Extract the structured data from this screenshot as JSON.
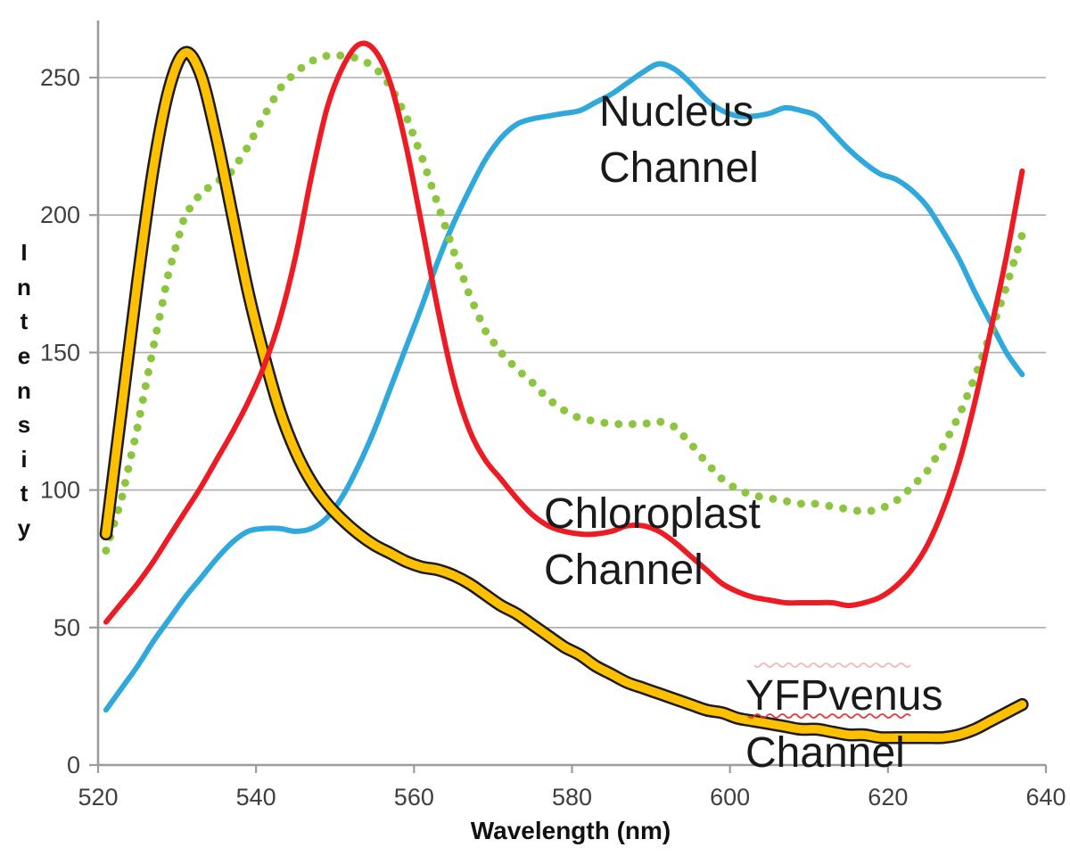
{
  "page": {
    "background": "#ffffff"
  },
  "chart_data": {
    "type": "line",
    "title": "",
    "xlabel": "Wavelength (nm)",
    "ylabel": "Intensity",
    "xlim": [
      520,
      640
    ],
    "ylim": [
      0,
      250
    ],
    "x_ticks": [
      "520",
      "540",
      "560",
      "580",
      "600",
      "620",
      "640"
    ],
    "y_ticks": [
      "0",
      "50",
      "100",
      "150",
      "200",
      "250"
    ],
    "grid": "horizontal-only",
    "legend_position": "none (series labeled by on-plot text annotations)",
    "colors": {
      "nucleus_line": "#2FA8DC",
      "green_dotted_line": "#8CC63F",
      "yfpvenus_line": "#FFC000",
      "yfpvenus_outline": "#1C1C1C",
      "chloroplast_line": "#ED1C24",
      "gridline": "#ABABAB",
      "axis": "#9B9B9B",
      "tick_text": "#3F3F3F",
      "annotation_text": "#1A1A1A",
      "spellcheck_underline": "#E03030"
    },
    "x": [
      521,
      523,
      525,
      527,
      529,
      531,
      533,
      535,
      537,
      539,
      541,
      543,
      545,
      547,
      549,
      551,
      553,
      555,
      557,
      559,
      561,
      563,
      565,
      567,
      569,
      571,
      573,
      575,
      577,
      579,
      581,
      583,
      585,
      587,
      589,
      591,
      593,
      595,
      597,
      599,
      601,
      603,
      605,
      607,
      609,
      611,
      613,
      615,
      617,
      619,
      621,
      623,
      625,
      627,
      629,
      631,
      633,
      635,
      637
    ],
    "series": [
      {
        "name": "Nucleus Channel",
        "style": "solid",
        "color": "#2FA8DC",
        "width": 6,
        "values": [
          20,
          28,
          36,
          45,
          53,
          61,
          68,
          75,
          81,
          85,
          86,
          86,
          85,
          86,
          90,
          98,
          109,
          122,
          137,
          152,
          167,
          183,
          197,
          209,
          220,
          228,
          233,
          235,
          236,
          237,
          238,
          241,
          244,
          248,
          252,
          255,
          253,
          248,
          242,
          238,
          236,
          236,
          237,
          239,
          238,
          236,
          230,
          224,
          219,
          215,
          213,
          209,
          203,
          194,
          184,
          172,
          161,
          150,
          142
        ]
      },
      {
        "name": "Green dotted series (unlabeled)",
        "style": "dotted",
        "color": "#8CC63F",
        "dot_radius": 4.5,
        "dot_spacing": 15,
        "values": [
          78,
          97,
          123,
          152,
          180,
          200,
          208,
          212,
          216,
          225,
          236,
          246,
          252,
          256,
          258,
          258,
          257,
          254,
          247,
          236,
          221,
          204,
          187,
          171,
          158,
          150,
          144,
          139,
          133,
          129,
          126,
          125,
          124,
          124,
          124,
          125,
          123,
          117,
          110,
          104,
          100,
          98,
          97,
          96,
          95,
          95,
          94,
          93,
          92,
          93,
          96,
          101,
          107,
          116,
          127,
          141,
          157,
          174,
          193
        ]
      },
      {
        "name": "YFPvenus Channel",
        "style": "thick-gold-with-black-outline",
        "color": "#FFC000",
        "outline": "#1C1C1C",
        "width": 9.5,
        "outline_width": 14.5,
        "values": [
          84,
          130,
          176,
          217,
          246,
          259,
          251,
          228,
          200,
          172,
          149,
          129,
          114,
          103,
          95,
          89,
          84,
          80,
          77,
          74,
          72,
          71,
          69,
          66,
          62,
          58,
          55,
          51,
          47,
          43,
          40,
          36,
          33,
          30,
          28,
          26,
          24,
          22,
          20,
          19,
          17,
          16,
          15,
          14,
          13,
          13,
          12,
          11,
          11,
          10,
          10,
          10,
          10,
          10,
          11,
          13,
          16,
          19,
          22
        ]
      },
      {
        "name": "Chloroplast Channel",
        "style": "solid",
        "color": "#ED1C24",
        "width": 6,
        "values": [
          52,
          59,
          66,
          74,
          83,
          92,
          101,
          111,
          121,
          132,
          145,
          162,
          185,
          214,
          239,
          254,
          262,
          260,
          248,
          225,
          196,
          166,
          140,
          122,
          111,
          104,
          97,
          91,
          87,
          85,
          84,
          84,
          85,
          87,
          87,
          85,
          81,
          76,
          71,
          66,
          63,
          61,
          60,
          59,
          59,
          59,
          59,
          58,
          59,
          61,
          65,
          71,
          80,
          93,
          110,
          132,
          158,
          185,
          216
        ]
      }
    ],
    "annotations": [
      {
        "series": "Nucleus Channel",
        "line1": "Nucleus",
        "line2": "Channel"
      },
      {
        "series": "Chloroplast Channel",
        "line1": "Chloroplast",
        "line2": "Channel"
      },
      {
        "series": "YFPvenus Channel",
        "line1": "YFPvenus",
        "line2": "Channel",
        "note": "red spell-check squiggle under YFPvenus"
      }
    ]
  }
}
